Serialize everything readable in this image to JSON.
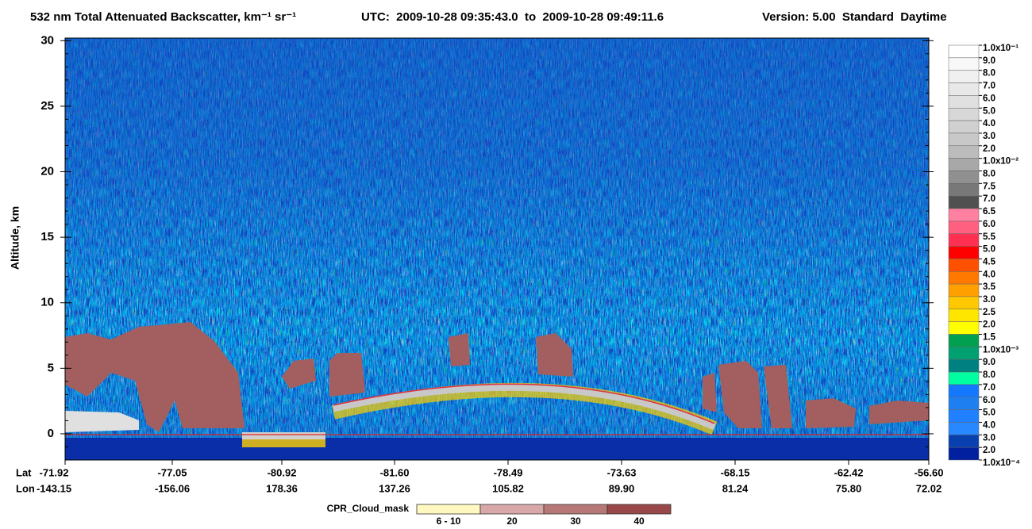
{
  "chart_data": {
    "type": "curtain",
    "title": "532 nm Total Attenuated Backscatter, km⁻¹ sr⁻¹",
    "utc": "UTC:  2009-10-28 09:35:43.0  to  2009-10-28 09:49:11.6",
    "version": "Version: 5.00  Standard  Daytime",
    "ylabel": "Altitude, km",
    "ylim": [
      -2,
      30.2
    ],
    "yticks": [
      0,
      5,
      10,
      15,
      20,
      25,
      30
    ],
    "lat_label": "Lat",
    "lon_label": "Lon",
    "lat": [
      "-71.92",
      "-77.05",
      "-80.92",
      "-81.60",
      "-78.49",
      "-73.63",
      "-68.15",
      "-62.42",
      "-56.60"
    ],
    "lon": [
      "-143.15",
      "-156.06",
      "178.36",
      "137.26",
      "105.82",
      "89.90",
      "81.24",
      "75.80",
      "72.02"
    ],
    "colorbar": {
      "labels": [
        "1.0x10⁻¹",
        "9.0",
        "8.0",
        "7.0",
        "6.0",
        "5.0",
        "4.0",
        "3.0",
        "2.0",
        "1.0x10⁻²",
        "8.0",
        "7.5",
        "7.0",
        "6.5",
        "6.0",
        "5.5",
        "5.0",
        "4.5",
        "4.0",
        "3.5",
        "3.0",
        "2.5",
        "2.0",
        "1.5",
        "1.0x10⁻³",
        "9.0",
        "8.0",
        "7.0",
        "6.0",
        "5.0",
        "4.0",
        "3.0",
        "2.0",
        "1.0x10⁻⁴"
      ],
      "colors": [
        "#ffffff",
        "#f8f8f8",
        "#f0f0f0",
        "#e8e8e8",
        "#e0e0e0",
        "#d8d8d8",
        "#d0d0d0",
        "#c8c8c8",
        "#bcbcbc",
        "#a8a8a8",
        "#909090",
        "#787878",
        "#505050",
        "#ff80a0",
        "#ff6080",
        "#ff3050",
        "#ff0000",
        "#ff5000",
        "#ff7800",
        "#ffa000",
        "#ffc800",
        "#ffe600",
        "#ffff00",
        "#00a050",
        "#00a070",
        "#008080",
        "#00ffa0",
        "#1478ff",
        "#1e80f0",
        "#2080ff",
        "#2888ff",
        "#0840b0",
        "#0020a0"
      ]
    },
    "cpr_label": "CPR_Cloud_mask",
    "cpr_entries": [
      "6 - 10",
      "20",
      "30",
      "40"
    ],
    "cpr_colors": [
      "#fff8c0",
      "#d8a8a8",
      "#b87878",
      "#984848"
    ]
  }
}
